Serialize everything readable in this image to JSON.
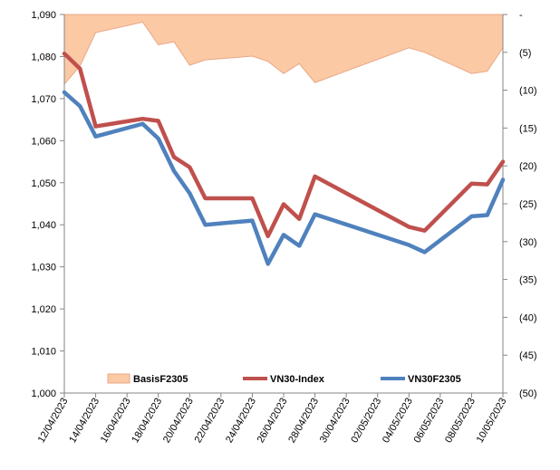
{
  "chart_data": {
    "type": "line",
    "x": [
      "12/04/2023",
      "13/04/2023",
      "14/04/2023",
      "17/04/2023",
      "18/04/2023",
      "19/04/2023",
      "20/04/2023",
      "21/04/2023",
      "24/04/2023",
      "25/04/2023",
      "26/04/2023",
      "27/04/2023",
      "28/04/2023",
      "04/05/2023",
      "05/05/2023",
      "08/05/2023",
      "09/05/2023",
      "10/05/2023"
    ],
    "x_tick_labels": [
      "12/04/2023",
      "14/04/2023",
      "16/04/2023",
      "18/04/2023",
      "20/04/2023",
      "22/04/2023",
      "24/04/2023",
      "26/04/2023",
      "28/04/2023",
      "30/04/2023",
      "02/05/2023",
      "04/05/2023",
      "06/05/2023",
      "08/05/2023",
      "10/05/2023"
    ],
    "y_left": {
      "lim": [
        1000,
        1090
      ],
      "ticks": [
        1000,
        1010,
        1020,
        1030,
        1040,
        1050,
        1060,
        1070,
        1080,
        1090
      ],
      "tick_labels": [
        "1,000",
        "1,010",
        "1,020",
        "1,030",
        "1,040",
        "1,050",
        "1,060",
        "1,070",
        "1,080",
        "1,090"
      ]
    },
    "y_right": {
      "lim": [
        -50,
        0
      ],
      "ticks": [
        0,
        -5,
        -10,
        -15,
        -20,
        -25,
        -30,
        -35,
        -40,
        -45,
        -50
      ],
      "tick_labels": [
        "-",
        "(5)",
        "(10)",
        "(15)",
        "(20)",
        "(25)",
        "(30)",
        "(35)",
        "(40)",
        "(45)",
        "(50)"
      ]
    },
    "series": [
      {
        "name": "BasisF2305",
        "type": "area",
        "axis": "right",
        "color": "#fcc9a5",
        "edge": "#e8a887",
        "values": [
          -9.2,
          -6.8,
          -2.4,
          -1.0,
          -4.0,
          -3.6,
          -6.7,
          -6.0,
          -5.5,
          -6.2,
          -7.8,
          -6.5,
          -9.0,
          -4.4,
          -5.0,
          -7.8,
          -7.5,
          -4.4
        ]
      },
      {
        "name": "VN30-Index",
        "type": "line",
        "axis": "left",
        "color": "#c0504d",
        "values": [
          1080.7,
          1077.1,
          1063.4,
          1065.2,
          1064.7,
          1056.1,
          1053.7,
          1046.3,
          1046.3,
          1037.3,
          1044.9,
          1041.4,
          1051.5,
          1039.5,
          1038.6,
          1049.8,
          1049.6,
          1055.0
        ]
      },
      {
        "name": "VN30F2305",
        "type": "line",
        "axis": "left",
        "color": "#4f81bd",
        "values": [
          1071.5,
          1068.2,
          1061.0,
          1064.0,
          1060.5,
          1052.8,
          1047.5,
          1040.0,
          1041.0,
          1030.7,
          1037.6,
          1035.0,
          1042.5,
          1035.2,
          1033.5,
          1042.0,
          1042.3,
          1050.7
        ]
      }
    ],
    "legend": {
      "position": "bottom-inside",
      "entries": [
        "BasisF2305",
        "VN30-Index",
        "VN30F2305"
      ]
    },
    "grid": false
  }
}
